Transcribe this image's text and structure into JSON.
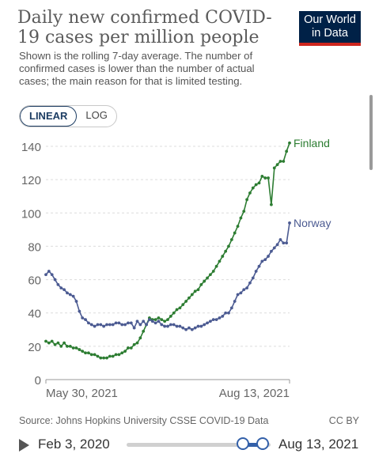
{
  "title": "Daily new confirmed COVID-19 cases per million people",
  "subtitle": "Shown is the rolling 7-day average. The number of confirmed cases is lower than the number of actual cases; the main reason for that is limited testing.",
  "logo": {
    "line1": "Our World",
    "line2": "in Data",
    "bg_color": "#002147",
    "accent_color": "#ce261e"
  },
  "scale_toggle": {
    "linear_label": "LINEAR",
    "log_label": "LOG",
    "active": "LINEAR"
  },
  "source": "Source: Johns Hopkins University CSSE COVID-19 Data",
  "license": "CC BY",
  "timeline": {
    "start_label": "Feb 3, 2020",
    "end_label": "Aug 13, 2021",
    "icon": "play-icon"
  },
  "chart_data": {
    "type": "line",
    "x_tick_labels": [
      "May 30, 2021",
      "Aug 13, 2021"
    ],
    "y_ticks": [
      0,
      20,
      40,
      60,
      80,
      100,
      120,
      140
    ],
    "ylim": [
      0,
      140
    ],
    "xlim": [
      0,
      80
    ],
    "grid": "horizontal dashed",
    "series": [
      {
        "name": "Finland",
        "color": "#2d7d32",
        "x": [
          0,
          1,
          2,
          3,
          4,
          5,
          6,
          7,
          8,
          9,
          10,
          11,
          12,
          13,
          14,
          15,
          16,
          17,
          18,
          19,
          20,
          21,
          22,
          23,
          24,
          25,
          26,
          27,
          28,
          29,
          30,
          31,
          32,
          33,
          34,
          35,
          36,
          37,
          38,
          39,
          40,
          41,
          42,
          43,
          44,
          45,
          46,
          47,
          48,
          49,
          50,
          51,
          52,
          53,
          54,
          55,
          56,
          57,
          58,
          59,
          60,
          61,
          62,
          63,
          64,
          65,
          66,
          67,
          68,
          69,
          70,
          71,
          72,
          73,
          74,
          75,
          76,
          77,
          78,
          79,
          80
        ],
        "y": [
          23,
          22,
          23,
          21,
          22,
          20,
          22,
          20,
          20,
          19,
          19,
          18,
          17,
          16,
          16,
          15,
          15,
          14,
          13,
          13,
          13,
          14,
          14,
          15,
          15,
          16,
          17,
          19,
          19,
          21,
          22,
          25,
          29,
          33,
          37,
          36,
          36,
          37,
          36,
          35,
          36,
          38,
          40,
          42,
          43,
          45,
          47,
          49,
          51,
          53,
          54,
          57,
          59,
          61,
          63,
          65,
          68,
          71,
          74,
          77,
          80,
          84,
          88,
          92,
          97,
          101,
          108,
          112,
          115,
          117,
          118,
          122,
          121,
          121,
          105,
          127,
          129,
          131,
          131,
          137,
          142
        ]
      },
      {
        "name": "Norway",
        "color": "#4c5b92",
        "x": [
          0,
          1,
          2,
          3,
          4,
          5,
          6,
          7,
          8,
          9,
          10,
          11,
          12,
          13,
          14,
          15,
          16,
          17,
          18,
          19,
          20,
          21,
          22,
          23,
          24,
          25,
          26,
          27,
          28,
          29,
          30,
          31,
          32,
          33,
          34,
          35,
          36,
          37,
          38,
          39,
          40,
          41,
          42,
          43,
          44,
          45,
          46,
          47,
          48,
          49,
          50,
          51,
          52,
          53,
          54,
          55,
          56,
          57,
          58,
          59,
          60,
          61,
          62,
          63,
          64,
          65,
          66,
          67,
          68,
          69,
          70,
          71,
          72,
          73,
          74,
          75,
          76,
          77,
          78,
          79,
          80
        ],
        "y": [
          63,
          65,
          63,
          60,
          57,
          55,
          54,
          52,
          51,
          50,
          47,
          41,
          37,
          36,
          34,
          33,
          32,
          33,
          33,
          32,
          33,
          33,
          33,
          34,
          34,
          33,
          33,
          34,
          34,
          31,
          35,
          33,
          35,
          33,
          36,
          35,
          34,
          35,
          33,
          32,
          32,
          33,
          33,
          32,
          32,
          31,
          30,
          31,
          30,
          31,
          32,
          32,
          33,
          34,
          35,
          36,
          36,
          37,
          38,
          40,
          40,
          43,
          47,
          51,
          52,
          54,
          55,
          58,
          61,
          65,
          68,
          71,
          72,
          74,
          77,
          79,
          81,
          84,
          82,
          82,
          94
        ]
      }
    ]
  }
}
